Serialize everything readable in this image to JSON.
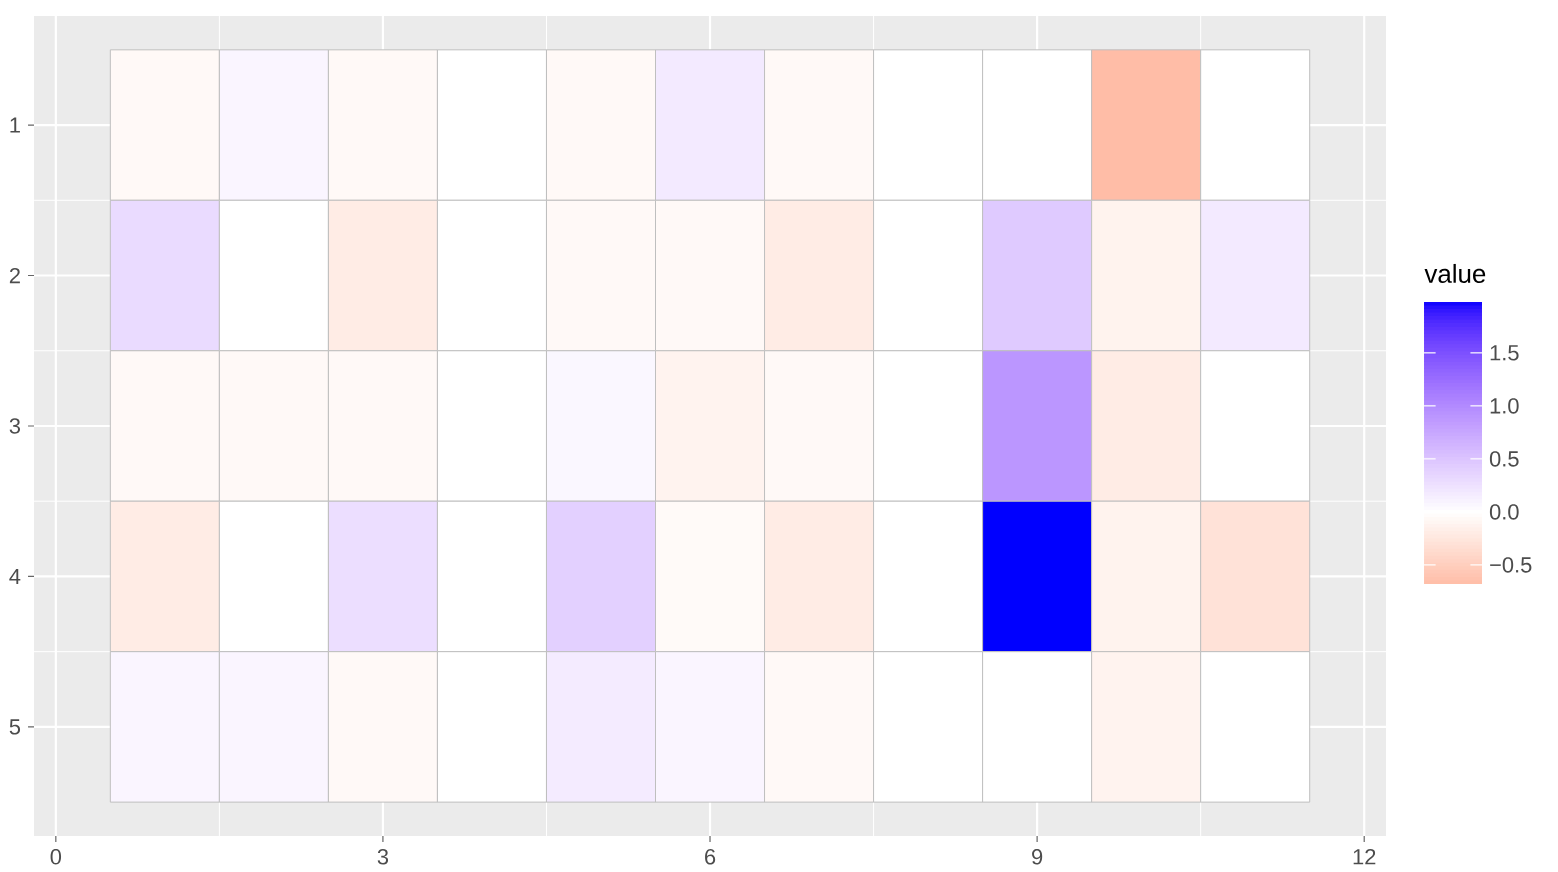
{
  "chart_data": {
    "type": "heatmap",
    "x": [
      1,
      2,
      3,
      4,
      5,
      6,
      7,
      8,
      9,
      10,
      11
    ],
    "xlim": [
      -0.2,
      12.2
    ],
    "xticks": [
      0,
      3,
      6,
      9,
      12
    ],
    "y_categories": [
      "1",
      "2",
      "3",
      "4",
      "5"
    ],
    "cells": [
      [
        -0.06,
        0.08,
        -0.06,
        0,
        -0.06,
        0.18,
        -0.06,
        0,
        0,
        -0.68,
        0
      ],
      [
        0.3,
        0,
        -0.2,
        0,
        -0.06,
        -0.06,
        -0.2,
        0,
        0.45,
        -0.13,
        0.18
      ],
      [
        -0.06,
        -0.06,
        -0.06,
        0,
        0.07,
        -0.12,
        -0.06,
        0,
        0.9,
        -0.2,
        0
      ],
      [
        -0.2,
        0,
        0.28,
        0,
        0.4,
        -0.05,
        -0.2,
        0,
        1.98,
        -0.13,
        -0.3
      ],
      [
        0.08,
        0.08,
        -0.06,
        0,
        0.17,
        0.08,
        -0.06,
        0,
        0,
        -0.12,
        0
      ]
    ],
    "clabel": "value",
    "clim": [
      -0.68,
      1.98
    ],
    "cticks": [
      {
        "value": -0.5,
        "label": "−0.5"
      },
      {
        "value": 0,
        "label": "0.0"
      },
      0.5,
      {
        "value": 1,
        "label": "1.0"
      },
      1.5
    ],
    "grid": true
  }
}
